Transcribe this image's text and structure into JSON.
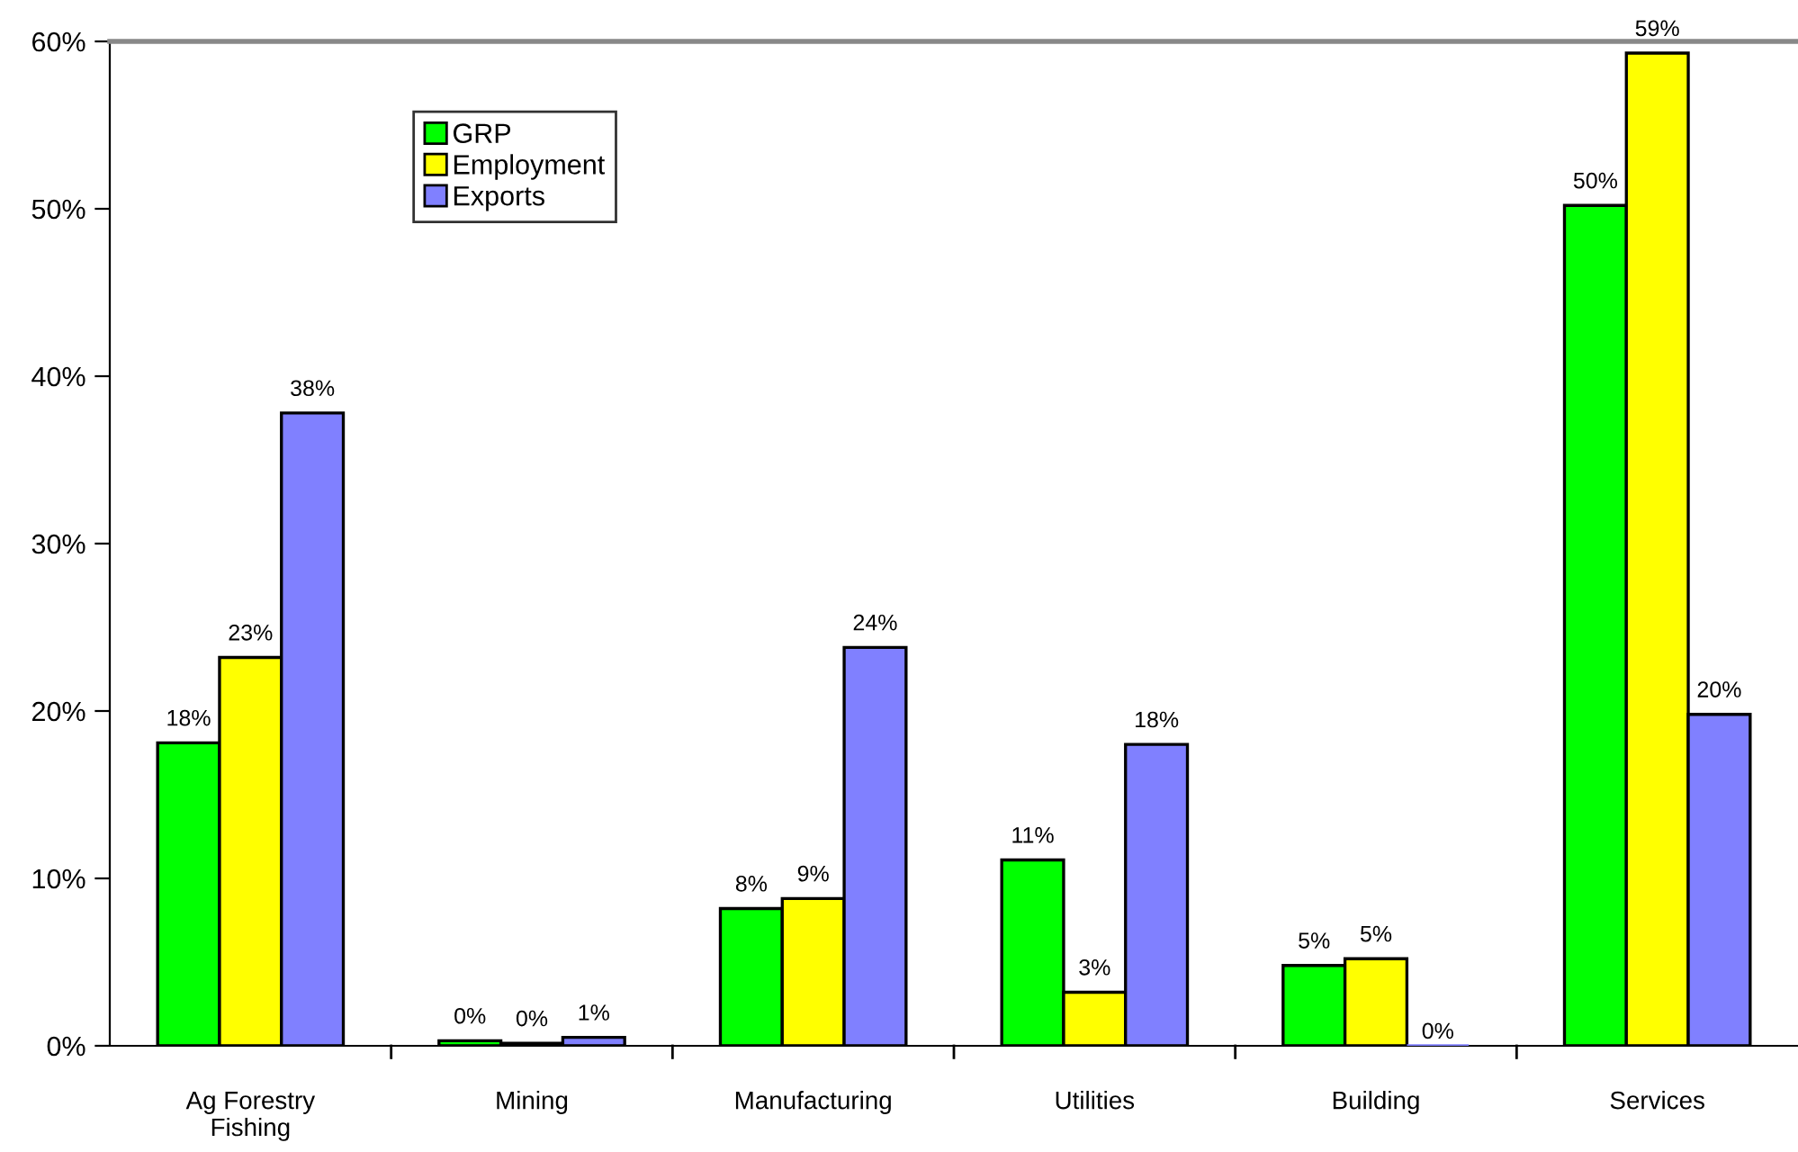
{
  "chart_data": {
    "type": "bar",
    "categories": [
      "Ag Forestry\nFishing",
      "Mining",
      "Manufacturing",
      "Utilities",
      "Building",
      "Services"
    ],
    "series": [
      {
        "name": "GRP",
        "color": "#00ff00",
        "values": [
          18.1,
          0.3,
          8.2,
          11.1,
          4.8,
          50.2
        ],
        "value_labels": [
          "18%",
          "0%",
          "8%",
          "11%",
          "5%",
          "50%"
        ]
      },
      {
        "name": "Employment",
        "color": "#ffff00",
        "values": [
          23.2,
          0.15,
          8.8,
          3.2,
          5.2,
          59.3
        ],
        "value_labels": [
          "23%",
          "0%",
          "9%",
          "3%",
          "5%",
          "59%"
        ]
      },
      {
        "name": "Exports",
        "color": "#8080ff",
        "values": [
          37.8,
          0.5,
          23.8,
          18.0,
          0,
          19.8
        ],
        "value_labels": [
          "38%",
          "1%",
          "24%",
          "18%",
          "0%",
          "20%"
        ]
      }
    ],
    "ylim": [
      0,
      60
    ],
    "yticks": [
      {
        "value": 0,
        "label": "0%"
      },
      {
        "value": 10,
        "label": "10%"
      },
      {
        "value": 20,
        "label": "20%"
      },
      {
        "value": 30,
        "label": "30%"
      },
      {
        "value": 40,
        "label": "40%"
      },
      {
        "value": 50,
        "label": "50%"
      },
      {
        "value": 60,
        "label": "60%"
      }
    ],
    "grid": false,
    "legend": "top left"
  }
}
